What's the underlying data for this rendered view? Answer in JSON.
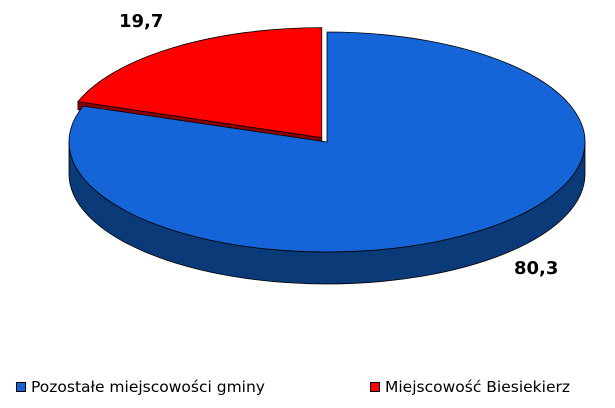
{
  "chart_data": {
    "type": "pie",
    "title": "",
    "slices": [
      {
        "label": "Pozostałe miejscowości gminy",
        "value": 80.3,
        "value_label": "80,3",
        "color": "#1565D8",
        "side_color": "#0A3A78"
      },
      {
        "label": "Miejscowość Biesiekierz",
        "value": 19.7,
        "value_label": "19,7",
        "color": "#FF0000",
        "side_color": "#8A0000"
      }
    ],
    "legend_position": "bottom",
    "three_d": true,
    "exploded_slice": "Miejscowość Biesiekierz"
  }
}
